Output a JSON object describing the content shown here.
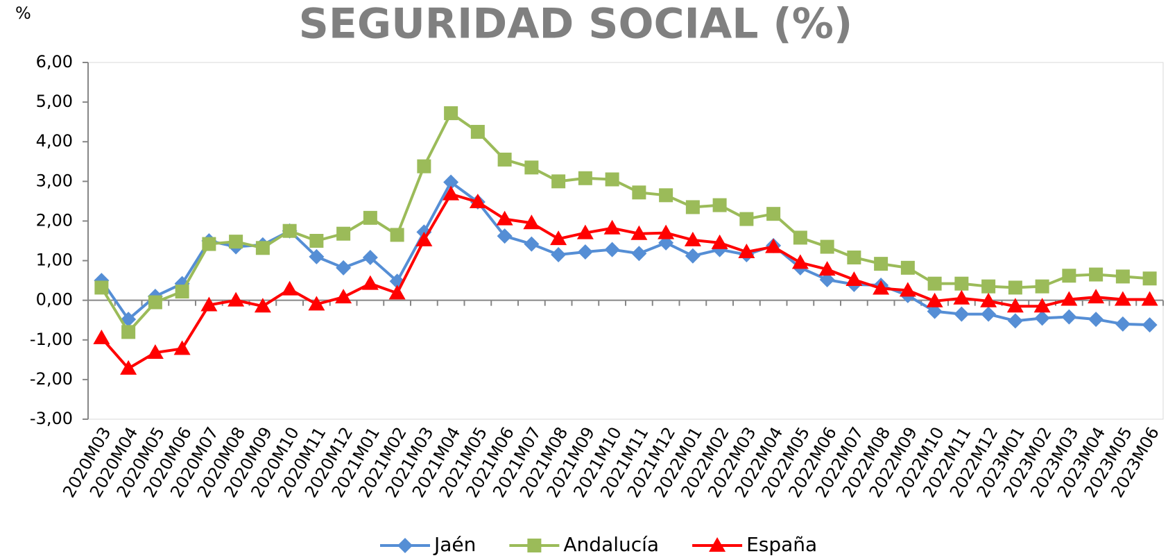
{
  "chart_data": {
    "type": "line",
    "title": "SEGURIDAD SOCIAL (%)",
    "y_label": "%",
    "categories": [
      "2020M03",
      "2020M04",
      "2020M05",
      "2020M06",
      "2020M07",
      "2020M08",
      "2020M09",
      "2020M10",
      "2020M11",
      "2020M12",
      "2021M01",
      "2021M02",
      "2021M03",
      "2021M04",
      "2021M05",
      "2021M06",
      "2021M07",
      "2021M08",
      "2021M09",
      "2021M10",
      "2021M11",
      "2021M12",
      "2022M01",
      "2022M02",
      "2022M03",
      "2022M04",
      "2022M05",
      "2022M06",
      "2022M07",
      "2022M08",
      "2022M09",
      "2022M10",
      "2022M11",
      "2022M12",
      "2023M01",
      "2023M02",
      "2023M03",
      "2023M04",
      "2023M05",
      "2023M06"
    ],
    "series": [
      {
        "name": "Jaén",
        "color": "#558ed5",
        "marker": "diamond",
        "values": [
          0.5,
          -0.48,
          0.1,
          0.42,
          1.5,
          1.35,
          1.4,
          1.75,
          1.1,
          0.82,
          1.08,
          0.48,
          1.72,
          2.98,
          2.48,
          1.62,
          1.42,
          1.15,
          1.22,
          1.28,
          1.18,
          1.45,
          1.12,
          1.28,
          1.15,
          1.38,
          0.82,
          0.52,
          0.4,
          0.38,
          0.12,
          -0.28,
          -0.35,
          -0.35,
          -0.52,
          -0.45,
          -0.42,
          -0.48,
          -0.6,
          -0.62
        ]
      },
      {
        "name": "Andalucía",
        "color": "#9bbb59",
        "marker": "square",
        "values": [
          0.32,
          -0.8,
          -0.05,
          0.22,
          1.42,
          1.48,
          1.32,
          1.75,
          1.5,
          1.68,
          2.08,
          1.65,
          3.38,
          4.72,
          4.25,
          3.55,
          3.35,
          3.0,
          3.08,
          3.05,
          2.72,
          2.65,
          2.35,
          2.4,
          2.05,
          2.18,
          1.58,
          1.35,
          1.08,
          0.92,
          0.82,
          0.42,
          0.42,
          0.35,
          0.32,
          0.35,
          0.62,
          0.65,
          0.6,
          0.55
        ]
      },
      {
        "name": "España",
        "color": "#ff0000",
        "marker": "triangle",
        "values": [
          -0.95,
          -1.72,
          -1.32,
          -1.22,
          -0.12,
          0.0,
          -0.15,
          0.28,
          -0.1,
          0.08,
          0.42,
          0.18,
          1.52,
          2.68,
          2.48,
          2.05,
          1.95,
          1.55,
          1.7,
          1.82,
          1.68,
          1.7,
          1.52,
          1.45,
          1.22,
          1.35,
          0.95,
          0.78,
          0.52,
          0.3,
          0.25,
          -0.02,
          0.05,
          -0.02,
          -0.15,
          -0.15,
          0.02,
          0.08,
          0.02,
          0.02
        ]
      }
    ],
    "ylim": [
      -3,
      6
    ],
    "yticks": [
      {
        "value": -3,
        "label": "-3,00"
      },
      {
        "value": -2,
        "label": "-2,00"
      },
      {
        "value": -1,
        "label": "-1,00"
      },
      {
        "value": 0,
        "label": "0,00"
      },
      {
        "value": 1,
        "label": "1,00"
      },
      {
        "value": 2,
        "label": "2,00"
      },
      {
        "value": 3,
        "label": "3,00"
      },
      {
        "value": 4,
        "label": "4,00"
      },
      {
        "value": 5,
        "label": "5,00"
      },
      {
        "value": 6,
        "label": "6,00"
      }
    ],
    "grid": false,
    "legend": "bottom"
  }
}
